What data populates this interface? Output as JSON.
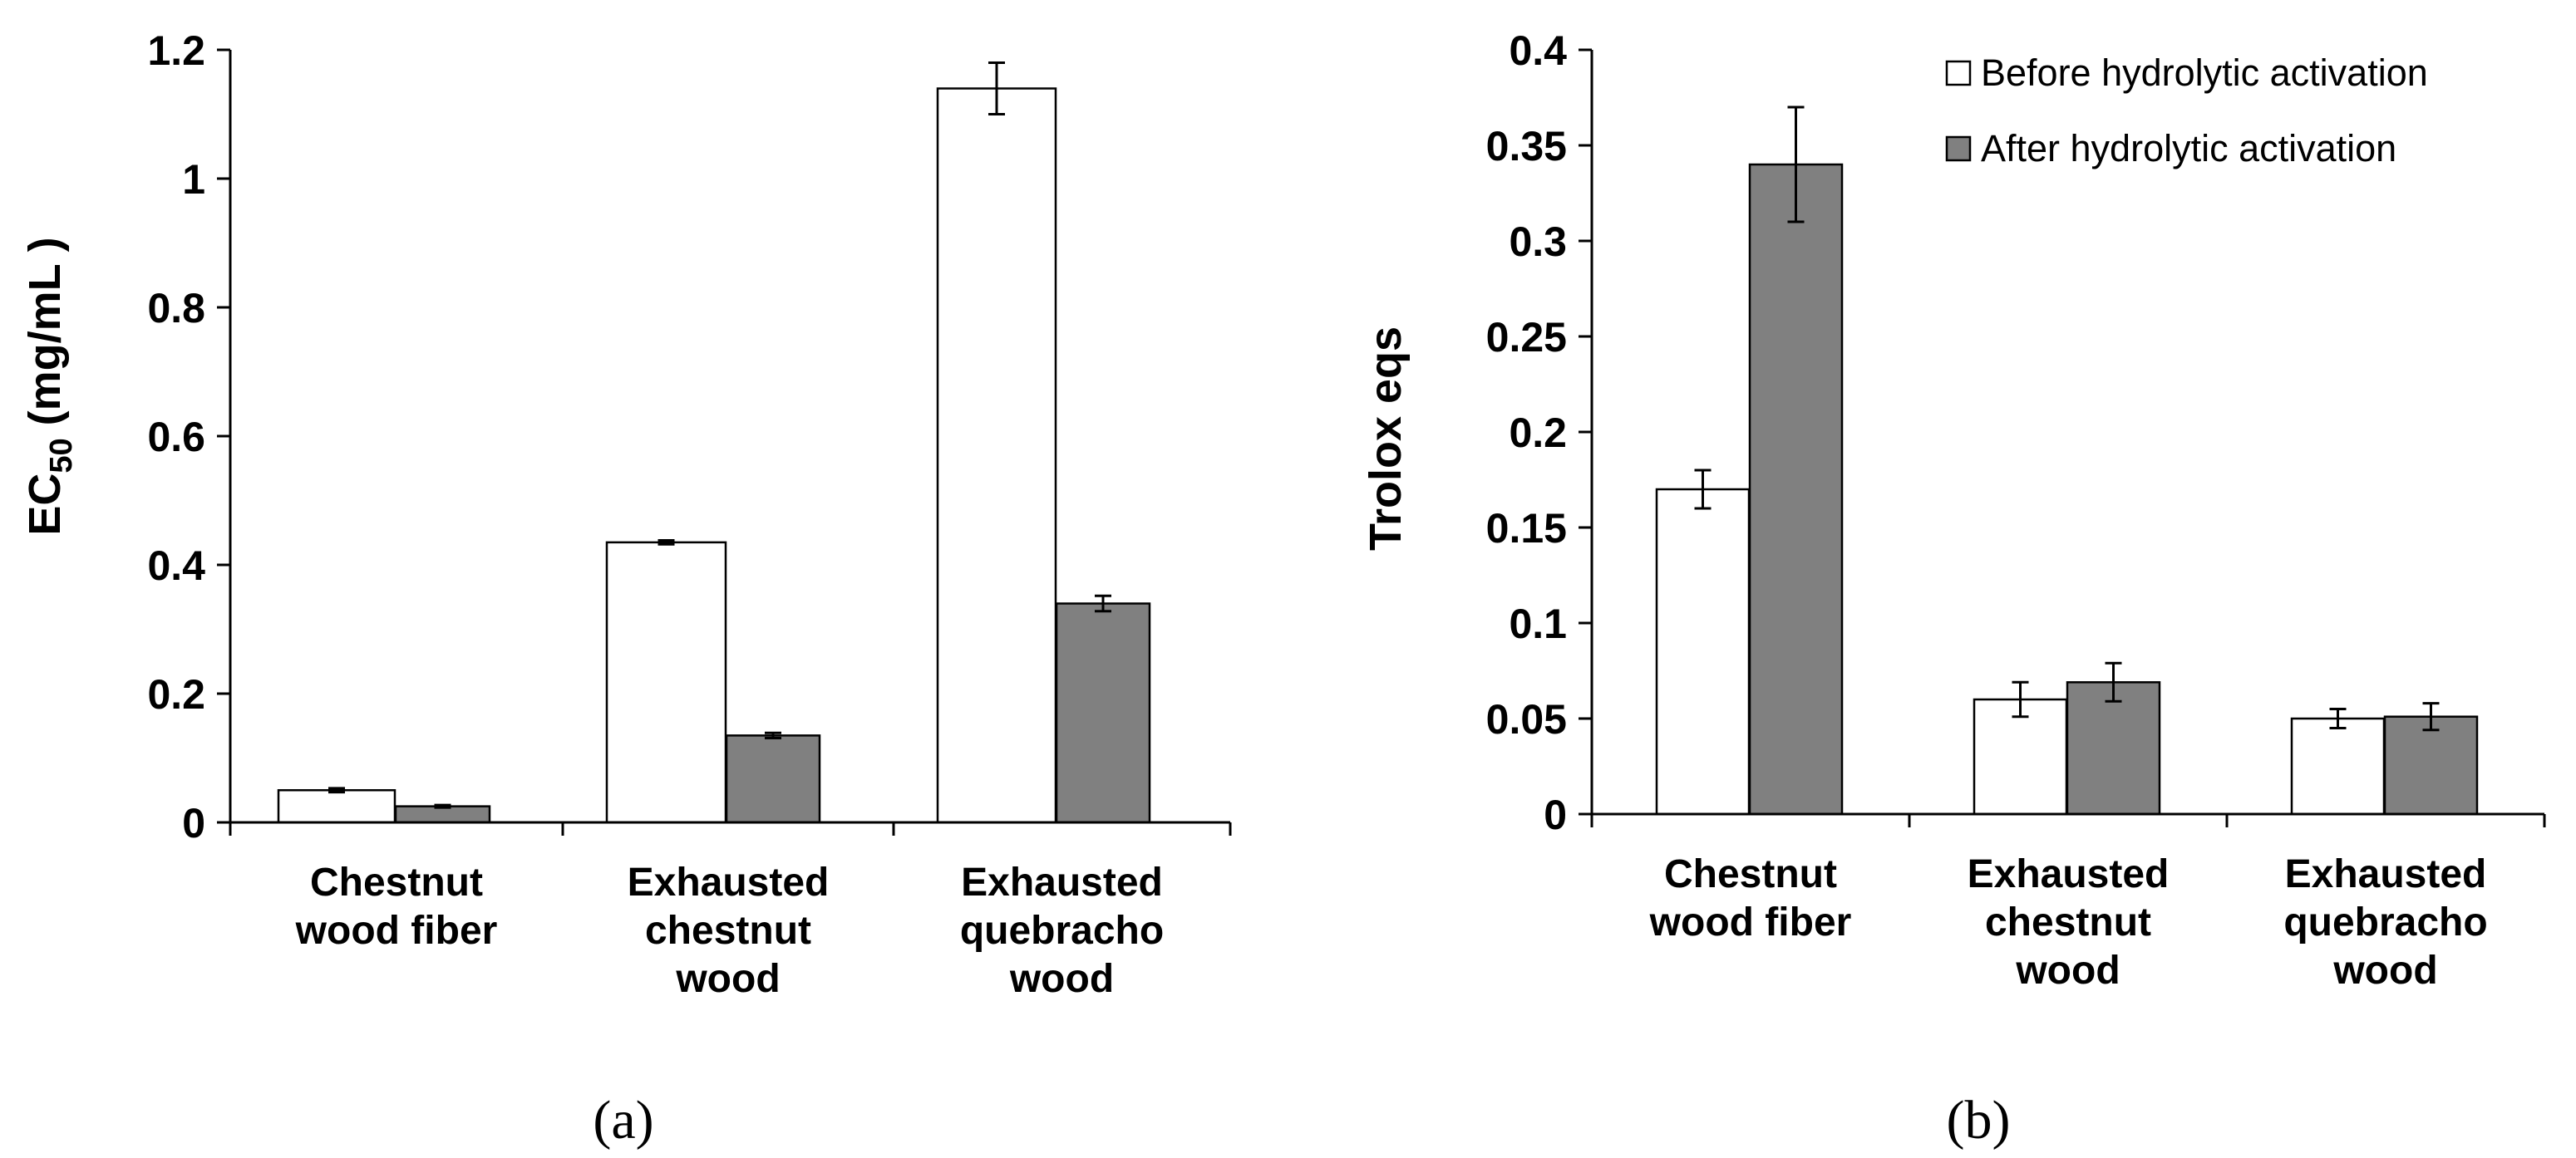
{
  "colors": {
    "before": "#ffffff",
    "after": "#808080",
    "stroke": "#000000"
  },
  "legend": {
    "before": "Before hydrolytic activation",
    "after": "After hydrolytic activation"
  },
  "chart_data": [
    {
      "panel": "a",
      "panel_label": "(a)",
      "type": "bar",
      "categories": [
        [
          "Chestnut",
          "wood fiber"
        ],
        [
          "Exhausted",
          "chestnut",
          "wood"
        ],
        [
          "Exhausted",
          "quebracho",
          "wood"
        ]
      ],
      "series": [
        {
          "name": "Before hydrolytic activation",
          "values": [
            0.05,
            0.435,
            1.14
          ],
          "errors": [
            0.003,
            0.003,
            0.04
          ]
        },
        {
          "name": "After hydrolytic activation",
          "values": [
            0.025,
            0.135,
            0.34
          ],
          "errors": [
            0.002,
            0.004,
            0.012
          ]
        }
      ],
      "ylabel": {
        "main": "EC",
        "sub": "50",
        "rest": " (mg/mL )"
      },
      "ylim": [
        0,
        1.2
      ],
      "yticks": [
        0,
        0.2,
        0.4,
        0.6,
        0.8,
        1,
        1.2
      ],
      "ytick_labels": [
        "0",
        "0.2",
        "0.4",
        "0.6",
        "0.8",
        "1",
        "1.2"
      ],
      "legend": false
    },
    {
      "panel": "b",
      "panel_label": "(b)",
      "type": "bar",
      "categories": [
        [
          "Chestnut",
          "wood fiber"
        ],
        [
          "Exhausted",
          "chestnut",
          "wood"
        ],
        [
          "Exhausted",
          "quebracho",
          "wood"
        ]
      ],
      "series": [
        {
          "name": "Before hydrolytic activation",
          "values": [
            0.17,
            0.06,
            0.05
          ],
          "errors": [
            0.01,
            0.009,
            0.005
          ]
        },
        {
          "name": "After hydrolytic activation",
          "values": [
            0.34,
            0.069,
            0.051
          ],
          "errors": [
            0.03,
            0.01,
            0.007
          ]
        }
      ],
      "ylabel": {
        "main": "Trolox eqs",
        "sub": "",
        "rest": ""
      },
      "ylim": [
        0,
        0.4
      ],
      "yticks": [
        0,
        0.05,
        0.1,
        0.15,
        0.2,
        0.25,
        0.3,
        0.35,
        0.4
      ],
      "ytick_labels": [
        "0",
        "0.05",
        "0.1",
        "0.15",
        "0.2",
        "0.25",
        "0.3",
        "0.35",
        "0.4"
      ],
      "legend": true,
      "legend_position": "top-right"
    }
  ]
}
